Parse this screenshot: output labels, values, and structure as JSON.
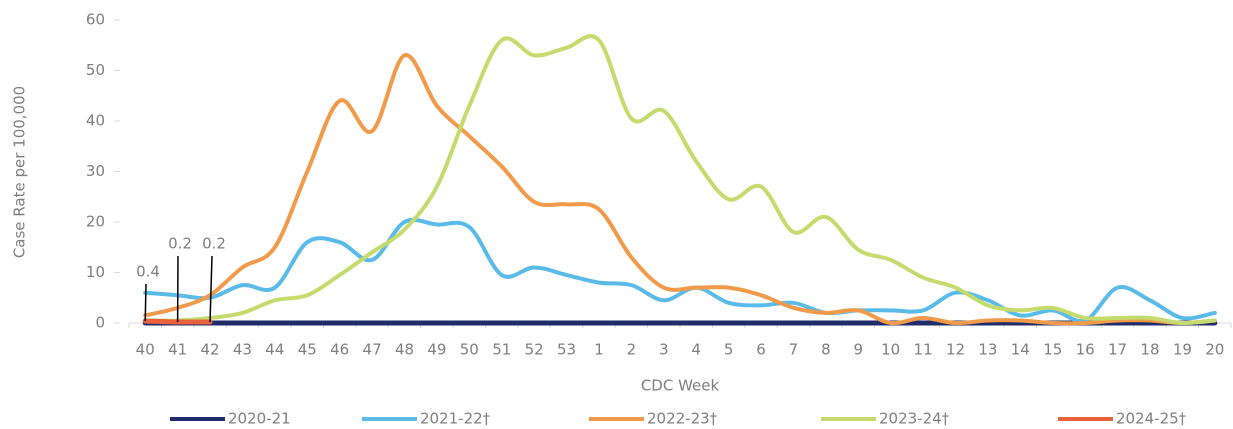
{
  "chart_data": {
    "type": "line",
    "x_label": "CDC Week",
    "y_label": "Case Rate per 100,000",
    "categories": [
      "40",
      "41",
      "42",
      "43",
      "44",
      "45",
      "46",
      "47",
      "48",
      "49",
      "50",
      "51",
      "52",
      "53",
      "1",
      "2",
      "3",
      "4",
      "5",
      "6",
      "7",
      "8",
      "9",
      "10",
      "11",
      "12",
      "13",
      "14",
      "15",
      "16",
      "17",
      "18",
      "19",
      "20"
    ],
    "ylim": [
      0,
      60
    ],
    "yticks": [
      0,
      10,
      20,
      30,
      40,
      50,
      60
    ],
    "smooth": true,
    "legend": "bottom",
    "series": [
      {
        "name": "2020-21",
        "color": "#1f2d6b",
        "values": [
          0,
          0,
          0,
          0,
          0,
          0,
          0,
          0,
          0,
          0,
          0,
          0,
          0,
          0,
          0,
          0,
          0,
          0,
          0,
          0,
          0,
          0,
          0,
          0,
          0,
          0,
          0,
          0,
          0,
          0,
          0,
          0,
          0,
          0
        ]
      },
      {
        "name": "2021-22†",
        "color": "#5bbbe8",
        "values": [
          6,
          5.5,
          5,
          7.5,
          7,
          16,
          16,
          12.5,
          20,
          19.5,
          19,
          9.5,
          11,
          9.5,
          8,
          7.5,
          4.5,
          7,
          4,
          3.5,
          4,
          2,
          2.5,
          2.5,
          2.5,
          6,
          4.5,
          1.5,
          2.5,
          0.5,
          7,
          4.5,
          1,
          2
        ]
      },
      {
        "name": "2022-23†",
        "color": "#f09a4a",
        "values": [
          1.5,
          3,
          5.5,
          11,
          15,
          30,
          44,
          38,
          53,
          43,
          37,
          31,
          24,
          23.5,
          22.5,
          13,
          7,
          7,
          7,
          5.5,
          3,
          2,
          2.5,
          0,
          1,
          0,
          0.5,
          0.5,
          0,
          0,
          0.5,
          0.5,
          0,
          0.5
        ]
      },
      {
        "name": "2023-24†",
        "color": "#c5db6e",
        "values": [
          0.5,
          0.5,
          1,
          2,
          4.5,
          5.5,
          9.5,
          14,
          18.5,
          27,
          43,
          56,
          53,
          54.5,
          56,
          40.5,
          42,
          32,
          24.5,
          27,
          18,
          21,
          14.5,
          12.5,
          9,
          7,
          3.5,
          2.5,
          3,
          1,
          1,
          1,
          0,
          0.5
        ]
      },
      {
        "name": "2024-25†",
        "color": "#e9623e",
        "values": [
          0.4,
          0.2,
          0.2,
          null,
          null,
          null,
          null,
          null,
          null,
          null,
          null,
          null,
          null,
          null,
          null,
          null,
          null,
          null,
          null,
          null,
          null,
          null,
          null,
          null,
          null,
          null,
          null,
          null,
          null,
          null,
          null,
          null,
          null,
          null
        ]
      }
    ]
  }
}
